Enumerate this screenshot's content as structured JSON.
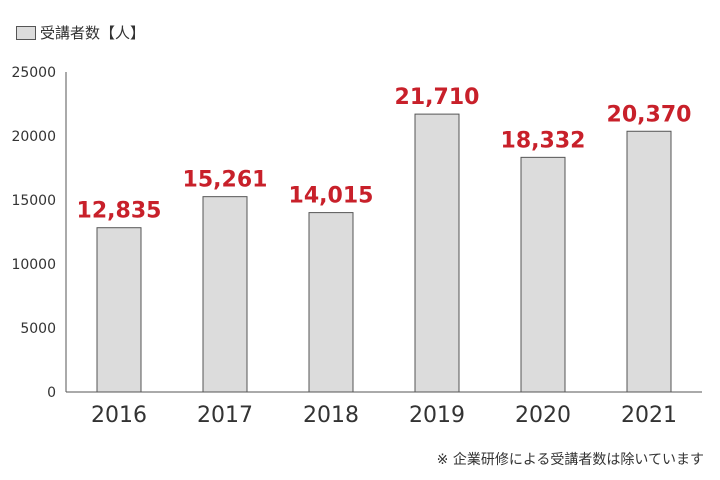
{
  "legend": {
    "label": "受講者数【人】"
  },
  "footnote": "※ 企業研修による受講者数は除いています",
  "colors": {
    "bar_fill": "#dcdcdc",
    "bar_stroke": "#555555",
    "label_color": "#c8202a",
    "axis": "#555555"
  },
  "chart_data": {
    "type": "bar",
    "categories": [
      "2016",
      "2017",
      "2018",
      "2019",
      "2020",
      "2021"
    ],
    "series": [
      {
        "name": "受講者数【人】",
        "values": [
          12835,
          15261,
          14015,
          21710,
          18332,
          20370
        ]
      }
    ],
    "data_labels": [
      "12,835",
      "15,261",
      "14,015",
      "21,710",
      "18,332",
      "20,370"
    ],
    "y_ticks": [
      0,
      5000,
      10000,
      15000,
      20000,
      25000
    ],
    "ylim": [
      0,
      25000
    ],
    "grid": false,
    "legend_position": "top-left"
  }
}
